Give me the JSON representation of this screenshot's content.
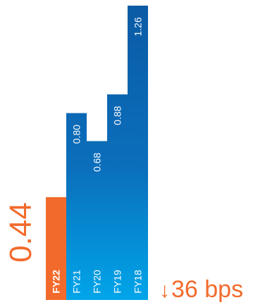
{
  "chart_data": {
    "type": "bar",
    "orientation": "vertical",
    "categories": [
      "FY22",
      "FY21",
      "FY20",
      "FY19",
      "FY18"
    ],
    "values": [
      0.44,
      0.8,
      0.68,
      0.88,
      1.26
    ],
    "value_labels": [
      "0.44",
      "0.80",
      "0.68",
      "0.88",
      "1.26"
    ],
    "highlight_category": "FY22",
    "ylim": [
      0,
      1.26
    ],
    "grid": false,
    "legend": "none",
    "colors": {
      "highlight": "#f26b2c",
      "bar_top": "#0b5aa4",
      "bar_bottom": "#00a3e8",
      "label": "#ffffff"
    }
  },
  "hero_value": "0.44",
  "change": {
    "arrow": "↓",
    "text": "36 bps"
  }
}
